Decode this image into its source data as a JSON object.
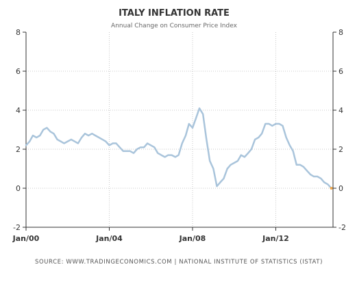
{
  "colors": {
    "series": "#a9c4db",
    "grid": "#c8c8c8",
    "axis": "#333333",
    "text": "#333333",
    "subtitle": "#666666",
    "end_marker": "#f0a64a"
  },
  "source_text": "SOURCE: WWW.TRADINGECONOMICS.COM  |  NATIONAL INSTITUTE OF STATISTICS (ISTAT)",
  "chart_data": {
    "type": "line",
    "title": "ITALY INFLATION RATE",
    "subtitle": "Annual Change on Consumer Price Index",
    "xlabel": "",
    "ylabel": "",
    "xlim": [
      2000.0,
      2014.75
    ],
    "ylim": [
      -2,
      8
    ],
    "x_ticks": [
      {
        "x": 2000.0,
        "label": "Jan/00"
      },
      {
        "x": 2004.0,
        "label": "Jan/04"
      },
      {
        "x": 2008.0,
        "label": "Jan/08"
      },
      {
        "x": 2012.0,
        "label": "Jan/12"
      }
    ],
    "y_ticks": [
      -2,
      0,
      2,
      4,
      6,
      8
    ],
    "grid": true,
    "series": [
      {
        "name": "",
        "x": [
          2000.0,
          2000.17,
          2000.33,
          2000.5,
          2000.67,
          2000.83,
          2001.0,
          2001.17,
          2001.33,
          2001.5,
          2001.67,
          2001.83,
          2002.0,
          2002.17,
          2002.33,
          2002.5,
          2002.67,
          2002.83,
          2003.0,
          2003.17,
          2003.33,
          2003.5,
          2003.67,
          2003.83,
          2004.0,
          2004.17,
          2004.33,
          2004.5,
          2004.67,
          2004.83,
          2005.0,
          2005.17,
          2005.33,
          2005.5,
          2005.67,
          2005.83,
          2006.0,
          2006.17,
          2006.33,
          2006.5,
          2006.67,
          2006.83,
          2007.0,
          2007.17,
          2007.33,
          2007.5,
          2007.67,
          2007.83,
          2008.0,
          2008.17,
          2008.33,
          2008.5,
          2008.67,
          2008.83,
          2009.0,
          2009.17,
          2009.33,
          2009.5,
          2009.67,
          2009.83,
          2010.0,
          2010.17,
          2010.33,
          2010.5,
          2010.67,
          2010.83,
          2011.0,
          2011.17,
          2011.33,
          2011.5,
          2011.67,
          2011.83,
          2012.0,
          2012.17,
          2012.33,
          2012.5,
          2012.67,
          2012.83,
          2013.0,
          2013.17,
          2013.33,
          2013.5,
          2013.67,
          2013.83,
          2014.0,
          2014.17,
          2014.33,
          2014.5,
          2014.67
        ],
        "values": [
          2.2,
          2.4,
          2.7,
          2.6,
          2.7,
          3.0,
          3.1,
          2.9,
          2.8,
          2.5,
          2.4,
          2.3,
          2.4,
          2.5,
          2.4,
          2.3,
          2.6,
          2.8,
          2.7,
          2.8,
          2.7,
          2.6,
          2.5,
          2.4,
          2.2,
          2.3,
          2.3,
          2.1,
          1.9,
          1.9,
          1.9,
          1.8,
          2.0,
          2.1,
          2.1,
          2.3,
          2.2,
          2.1,
          1.8,
          1.7,
          1.6,
          1.7,
          1.7,
          1.6,
          1.7,
          2.3,
          2.7,
          3.3,
          3.1,
          3.6,
          4.1,
          3.8,
          2.5,
          1.4,
          1.0,
          0.1,
          0.3,
          0.5,
          1.0,
          1.2,
          1.3,
          1.4,
          1.7,
          1.6,
          1.8,
          2.0,
          2.5,
          2.6,
          2.8,
          3.3,
          3.3,
          3.2,
          3.3,
          3.3,
          3.2,
          2.6,
          2.2,
          1.9,
          1.2,
          1.2,
          1.1,
          0.9,
          0.7,
          0.6,
          0.6,
          0.5,
          0.3,
          0.2,
          0.0
        ]
      }
    ]
  }
}
